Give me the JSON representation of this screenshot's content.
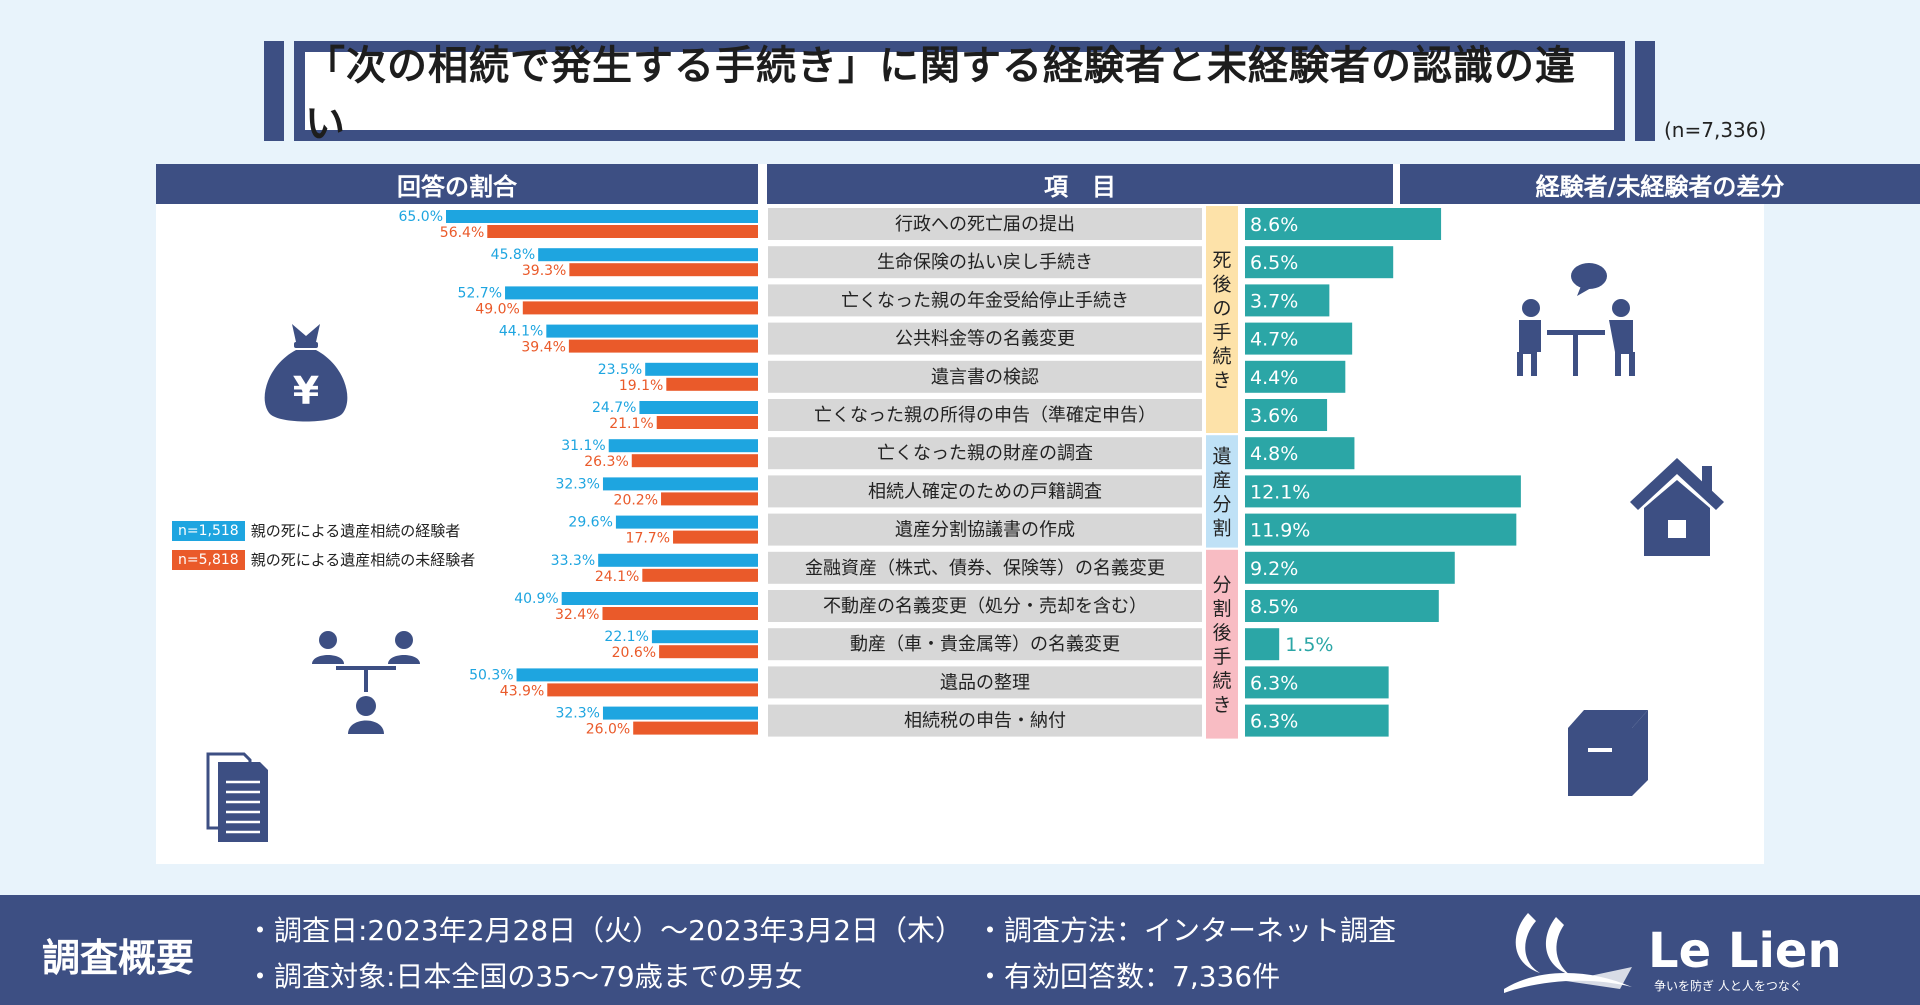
{
  "title": "「次の相続で発生する手続き」に関する経験者と未経験者の認識の違い",
  "sample_size": "(n=7,336)",
  "headers": {
    "ratio": "回答の割合",
    "item": "項　目",
    "diff": "経験者/未経験者の差分"
  },
  "legend": [
    {
      "badge": "n=1,518",
      "label": "親の死による遺産相続の経験者",
      "color": "#1ea5e0"
    },
    {
      "badge": "n=5,818",
      "label": "親の死による遺産相続の未経験者",
      "color": "#ea5a2a"
    }
  ],
  "segments": [
    {
      "label": "死後の手続き",
      "color": "#fde2a9"
    },
    {
      "label": "遺産分割",
      "color": "#bfe1f6"
    },
    {
      "label": "分割後手続き",
      "color": "#f8bcc3"
    }
  ],
  "chart_data": {
    "type": "bar",
    "title": "「次の相続で発生する手続き」に関する経験者と未経験者の認識の違い",
    "categories": [
      "行政への死亡届の提出",
      "生命保険の払い戻し手続き",
      "亡くなった親の年金受給停止手続き",
      "公共料金等の名義変更",
      "遺言書の検認",
      "亡くなった親の所得の申告（準確定申告）",
      "亡くなった親の財産の調査",
      "相続人確定のための戸籍調査",
      "遺産分割協議書の作成",
      "金融資産（株式、債券、保険等）の名義変更",
      "不動産の名義変更（処分・売却を含む）",
      "動産（車・貴金属等）の名義変更",
      "遺品の整理",
      "相続税の申告・納付"
    ],
    "segment_index": [
      0,
      0,
      0,
      0,
      0,
      0,
      1,
      1,
      1,
      2,
      2,
      2,
      2,
      2
    ],
    "series": [
      {
        "name": "親の死による遺産相続の経験者",
        "values": [
          65.0,
          45.8,
          52.7,
          44.1,
          23.5,
          24.7,
          31.1,
          32.3,
          29.6,
          33.3,
          40.9,
          22.1,
          50.3,
          32.3
        ],
        "labels": [
          "65.0%",
          "45.8%",
          "52.7%",
          "44.1%",
          "23.5%",
          "24.7%",
          "31.1%",
          "32.3%",
          "29.6%",
          "33.3%",
          "40.9%",
          "22.1%",
          "50.3%",
          "32.3%"
        ]
      },
      {
        "name": "親の死による遺産相続の未経験者",
        "values": [
          56.4,
          39.3,
          49.0,
          39.4,
          19.1,
          21.1,
          26.3,
          20.2,
          17.7,
          24.1,
          32.4,
          20.6,
          43.9,
          26.0
        ],
        "labels": [
          "56.4%",
          "39.3%",
          "49.0%",
          "39.4%",
          "19.1%",
          "21.1%",
          "26.3%",
          "20.2%",
          "17.7%",
          "24.1%",
          "32.4%",
          "20.6%",
          "43.9%",
          "26.0%"
        ]
      }
    ],
    "diff": {
      "name": "経験者/未経験者の差分",
      "values": [
        8.6,
        6.5,
        3.7,
        4.7,
        4.4,
        3.6,
        4.8,
        12.1,
        11.9,
        9.2,
        8.5,
        1.5,
        6.3,
        6.3
      ],
      "labels": [
        "8.6%",
        "6.5%",
        "3.7%",
        "4.7%",
        "4.4%",
        "3.6%",
        "4.8%",
        "12.1%",
        "11.9%",
        "9.2%",
        "8.5%",
        "1.5%",
        "6.3%",
        "6.3%"
      ]
    },
    "xlim_ratio": [
      0,
      80
    ],
    "xlim_diff": [
      0,
      15
    ],
    "colors": {
      "experienced": "#1ea5e0",
      "inexperienced": "#ea5a2a",
      "diff": "#2ba6a6",
      "item_bg": "#d7d7d7"
    }
  },
  "footer": {
    "title": "調査概要",
    "items": [
      "・調査日:2023年2月28日（火）～2023年3月2日（木）",
      "・調査対象:日本全国の35～79歳までの男女",
      "・調査方法：インターネット調査",
      "・有効回答数：7,336件"
    ],
    "logo": "Le Lien",
    "logo_tagline": "争いを防ぎ 人と人をつなぐ"
  },
  "icons": [
    "money-bag-yen-icon",
    "scales-people-icon",
    "documents-icon",
    "meeting-icon",
    "house-icon",
    "box-icon"
  ]
}
